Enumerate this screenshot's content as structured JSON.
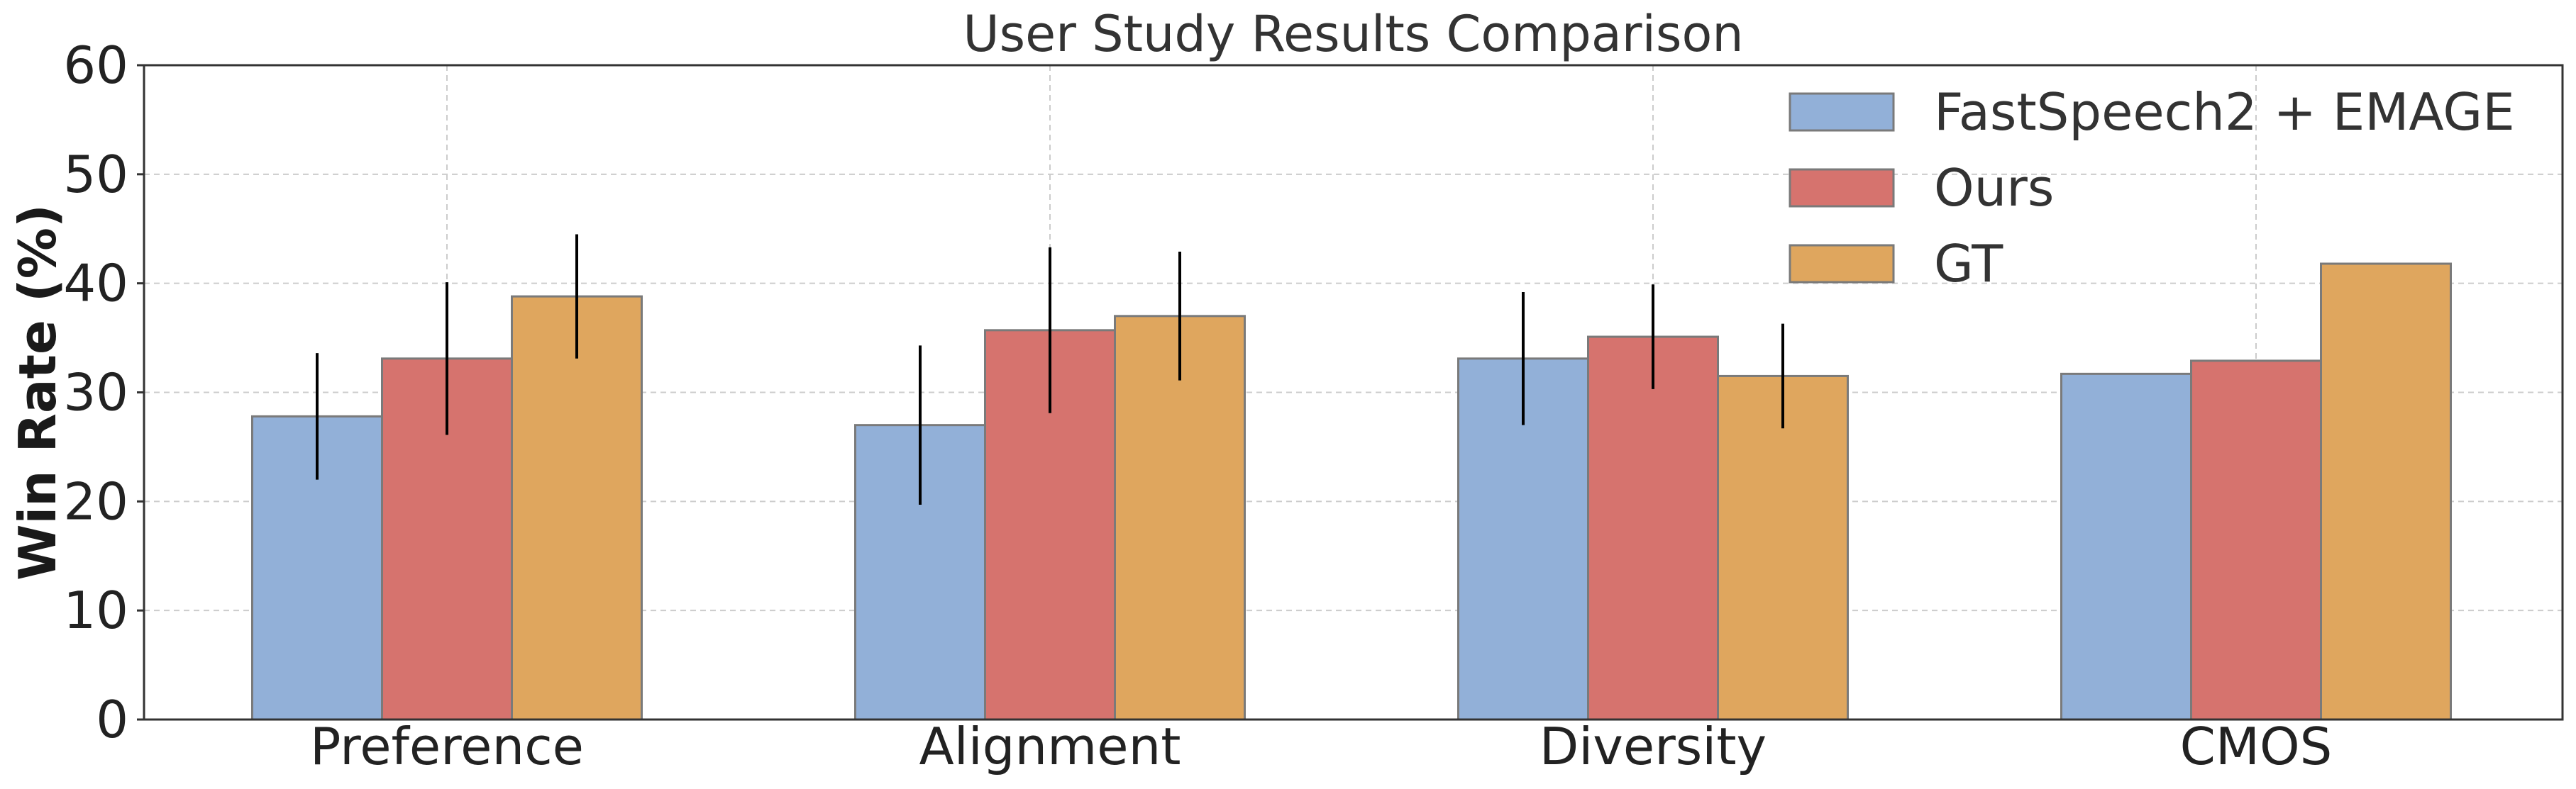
{
  "chart_data": {
    "type": "bar",
    "title": "User Study Results Comparison",
    "xlabel": "",
    "ylabel": "Win Rate (%)",
    "ylim": [
      0,
      60
    ],
    "yticks": [
      0,
      10,
      20,
      30,
      40,
      50,
      60
    ],
    "grid": true,
    "legend_position": "top-right",
    "categories": [
      "Preference",
      "Alignment",
      "Diversity",
      "CMOS"
    ],
    "series": [
      {
        "name": "FastSpeech2 + EMAGE",
        "color": "#92b0d8",
        "values": [
          27.8,
          27.0,
          33.1,
          31.7
        ],
        "errors": [
          5.8,
          7.3,
          6.1,
          null
        ]
      },
      {
        "name": "Ours",
        "color": "#d6736e",
        "values": [
          33.1,
          35.7,
          35.1,
          32.9
        ],
        "errors": [
          7.0,
          7.6,
          4.8,
          null
        ]
      },
      {
        "name": "GT",
        "color": "#dfa65e",
        "values": [
          38.8,
          37.0,
          31.5,
          41.8
        ],
        "errors": [
          5.7,
          5.9,
          4.8,
          null
        ]
      }
    ]
  }
}
